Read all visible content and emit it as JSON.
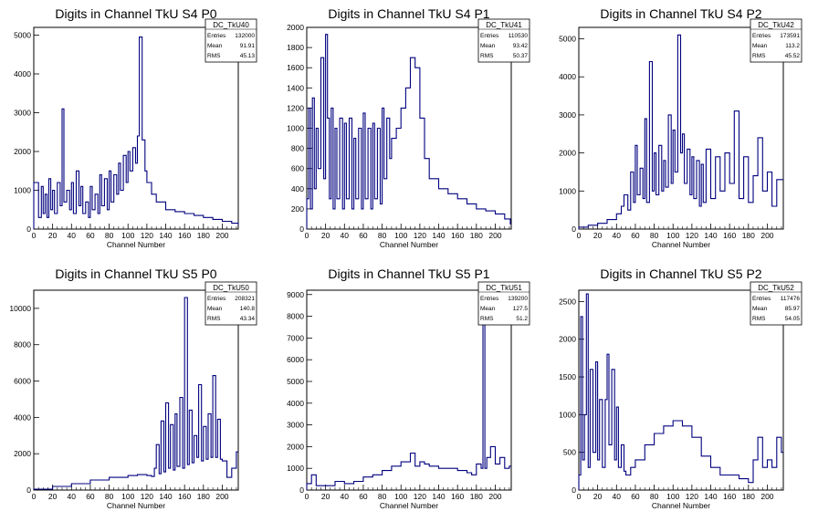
{
  "style": {
    "line_color": "#00007f",
    "frame_color": "#000000",
    "background": "#ffffff"
  },
  "chart_data": [
    {
      "type": "line",
      "title": "Digits in Channel TkU S4 P0",
      "xlabel": "Channel Number",
      "ylabel": "",
      "xlim": [
        0,
        217
      ],
      "ylim": [
        0,
        5200
      ],
      "xticks": [
        0,
        20,
        40,
        60,
        80,
        100,
        120,
        140,
        160,
        180,
        200
      ],
      "yticks": [
        0,
        1000,
        2000,
        3000,
        4000,
        5000
      ],
      "stats": {
        "name": "DC_TkU40",
        "entries": "132000",
        "mean": "91.91",
        "rms": "45.13"
      },
      "x": [
        0,
        5,
        8,
        10,
        12,
        14,
        16,
        18,
        20,
        22,
        25,
        28,
        30,
        32,
        35,
        38,
        40,
        42,
        45,
        48,
        50,
        52,
        55,
        58,
        60,
        62,
        65,
        68,
        70,
        72,
        75,
        78,
        80,
        82,
        85,
        88,
        90,
        92,
        95,
        98,
        100,
        102,
        105,
        108,
        110,
        112,
        115,
        118,
        120,
        125,
        130,
        140,
        150,
        160,
        170,
        180,
        190,
        200,
        210,
        217
      ],
      "values": [
        1200,
        300,
        1100,
        400,
        900,
        300,
        1300,
        500,
        1000,
        400,
        1200,
        600,
        3100,
        700,
        1000,
        500,
        1200,
        400,
        1500,
        600,
        1100,
        400,
        700,
        300,
        1100,
        500,
        900,
        400,
        1400,
        600,
        1300,
        500,
        1500,
        700,
        1400,
        900,
        1700,
        1000,
        1900,
        1200,
        2000,
        1500,
        2100,
        1700,
        2400,
        4950,
        2300,
        1500,
        1200,
        900,
        700,
        500,
        450,
        400,
        350,
        300,
        250,
        200,
        150,
        100
      ]
    },
    {
      "type": "line",
      "title": "Digits in Channel TkU S4 P1",
      "xlabel": "Channel Number",
      "ylabel": "",
      "xlim": [
        0,
        217
      ],
      "ylim": [
        0,
        2000
      ],
      "xticks": [
        0,
        20,
        40,
        60,
        80,
        100,
        120,
        140,
        160,
        180,
        200
      ],
      "yticks": [
        0,
        200,
        400,
        600,
        800,
        1000,
        1200,
        1400,
        1600,
        1800,
        2000
      ],
      "stats": {
        "name": "DC_TkU41",
        "entries": "110530",
        "mean": "93.42",
        "rms": "50.37"
      },
      "x": [
        0,
        2,
        4,
        6,
        8,
        10,
        12,
        15,
        18,
        20,
        22,
        24,
        26,
        28,
        30,
        32,
        35,
        38,
        40,
        42,
        45,
        48,
        50,
        52,
        55,
        58,
        60,
        62,
        65,
        68,
        70,
        72,
        75,
        78,
        80,
        82,
        85,
        88,
        90,
        95,
        100,
        105,
        110,
        115,
        120,
        125,
        130,
        140,
        150,
        160,
        170,
        180,
        190,
        200,
        210,
        216
      ],
      "values": [
        300,
        1200,
        200,
        1300,
        400,
        1000,
        600,
        1700,
        500,
        1930,
        1100,
        300,
        1200,
        200,
        1000,
        300,
        1100,
        200,
        1050,
        300,
        1100,
        200,
        900,
        300,
        1000,
        200,
        1150,
        300,
        1000,
        200,
        1050,
        300,
        1000,
        250,
        1200,
        500,
        1100,
        700,
        900,
        1000,
        1200,
        1400,
        1700,
        1600,
        1100,
        700,
        500,
        400,
        350,
        300,
        250,
        200,
        180,
        150,
        100,
        50
      ]
    },
    {
      "type": "line",
      "title": "Digits in Channel TkU S4 P2",
      "xlabel": "Channel Number",
      "ylabel": "",
      "xlim": [
        0,
        217
      ],
      "ylim": [
        0,
        5300
      ],
      "xticks": [
        0,
        20,
        40,
        60,
        80,
        100,
        120,
        140,
        160,
        180,
        200
      ],
      "yticks": [
        0,
        1000,
        2000,
        3000,
        4000,
        5000
      ],
      "stats": {
        "name": "DC_TkU42",
        "entries": "173591",
        "mean": "113.2",
        "rms": "45.52"
      },
      "x": [
        0,
        10,
        20,
        30,
        40,
        45,
        48,
        52,
        55,
        58,
        60,
        62,
        65,
        68,
        70,
        72,
        75,
        78,
        80,
        82,
        85,
        88,
        90,
        92,
        95,
        98,
        100,
        102,
        105,
        108,
        110,
        112,
        115,
        118,
        120,
        122,
        125,
        128,
        130,
        132,
        135,
        140,
        145,
        150,
        155,
        160,
        165,
        170,
        175,
        180,
        185,
        190,
        195,
        200,
        205,
        210
      ],
      "values": [
        50,
        100,
        150,
        250,
        400,
        600,
        900,
        500,
        1500,
        700,
        2200,
        900,
        1600,
        800,
        2900,
        700,
        4400,
        1000,
        2000,
        900,
        2200,
        1000,
        1800,
        1100,
        3000,
        1200,
        2600,
        1500,
        5100,
        2000,
        2500,
        1200,
        2100,
        900,
        1900,
        800,
        1800,
        600,
        1700,
        700,
        2100,
        800,
        1900,
        1000,
        2000,
        1200,
        3100,
        800,
        1900,
        700,
        1400,
        2400,
        1000,
        1500,
        600,
        1300
      ]
    },
    {
      "type": "line",
      "title": "Digits in Channel TkU S5 P0",
      "xlabel": "Channel Number",
      "ylabel": "",
      "xlim": [
        0,
        217
      ],
      "ylim": [
        0,
        11000
      ],
      "xticks": [
        0,
        20,
        40,
        60,
        80,
        100,
        120,
        140,
        160,
        180,
        200
      ],
      "yticks": [
        0,
        2000,
        4000,
        6000,
        8000,
        10000
      ],
      "stats": {
        "name": "DC_TkU50",
        "entries": "208321",
        "mean": "140.8",
        "rms": "43.34"
      },
      "x": [
        0,
        20,
        40,
        60,
        80,
        100,
        110,
        120,
        125,
        128,
        130,
        133,
        135,
        138,
        140,
        143,
        145,
        148,
        150,
        152,
        155,
        158,
        160,
        163,
        165,
        168,
        170,
        173,
        175,
        178,
        180,
        183,
        185,
        188,
        190,
        193,
        195,
        198,
        200,
        205,
        210,
        215
      ],
      "values": [
        50,
        200,
        350,
        550,
        700,
        800,
        850,
        800,
        750,
        1200,
        2500,
        900,
        3800,
        1000,
        4800,
        1200,
        3600,
        1100,
        4200,
        1300,
        5100,
        1200,
        10600,
        1400,
        4400,
        1500,
        3000,
        1800,
        5800,
        1600,
        3500,
        1700,
        4200,
        1800,
        6300,
        1800,
        3900,
        1700,
        1600,
        700,
        1200,
        2100
      ]
    },
    {
      "type": "line",
      "title": "Digits in Channel TkU S5 P1",
      "xlabel": "Channel Number",
      "ylabel": "",
      "xlim": [
        0,
        217
      ],
      "ylim": [
        0,
        9200
      ],
      "xticks": [
        0,
        20,
        40,
        60,
        80,
        100,
        120,
        140,
        160,
        180,
        200
      ],
      "yticks": [
        0,
        1000,
        2000,
        3000,
        4000,
        5000,
        6000,
        7000,
        8000,
        9000
      ],
      "stats": {
        "name": "DC_TkU51",
        "entries": "139200",
        "mean": "127.5",
        "rms": "51.2"
      },
      "x": [
        0,
        5,
        10,
        20,
        30,
        40,
        50,
        60,
        70,
        80,
        90,
        100,
        110,
        115,
        120,
        125,
        130,
        140,
        150,
        160,
        170,
        175,
        180,
        185,
        187,
        189,
        191,
        195,
        200,
        205,
        210,
        215
      ],
      "values": [
        300,
        700,
        200,
        200,
        400,
        300,
        400,
        600,
        700,
        900,
        1100,
        1300,
        1700,
        1100,
        1300,
        1200,
        1100,
        1000,
        1000,
        900,
        800,
        700,
        1200,
        1000,
        7900,
        1000,
        1500,
        2000,
        1200,
        1500,
        1000,
        1100
      ]
    },
    {
      "type": "line",
      "title": "Digits in Channel TkU S5 P2",
      "xlabel": "Channel Number",
      "ylabel": "",
      "xlim": [
        0,
        217
      ],
      "ylim": [
        0,
        2650
      ],
      "xticks": [
        0,
        20,
        40,
        60,
        80,
        100,
        120,
        140,
        160,
        180,
        200
      ],
      "yticks": [
        0,
        500,
        1000,
        1500,
        2000,
        2500
      ],
      "stats": {
        "name": "DC_TkU52",
        "entries": "117476",
        "mean": "85.97",
        "rms": "54.05"
      },
      "x": [
        0,
        2,
        4,
        6,
        8,
        10,
        12,
        15,
        18,
        20,
        22,
        25,
        28,
        30,
        32,
        35,
        38,
        40,
        42,
        45,
        48,
        50,
        55,
        60,
        70,
        80,
        90,
        100,
        110,
        120,
        130,
        140,
        150,
        160,
        170,
        180,
        185,
        190,
        195,
        200,
        205,
        210,
        215
      ],
      "values": [
        200,
        2300,
        400,
        1000,
        2600,
        300,
        1600,
        500,
        1700,
        400,
        1200,
        300,
        1200,
        1800,
        600,
        1600,
        400,
        1100,
        300,
        600,
        250,
        200,
        300,
        400,
        600,
        750,
        850,
        920,
        850,
        700,
        450,
        300,
        200,
        200,
        150,
        100,
        400,
        700,
        300,
        400,
        300,
        700,
        500
      ]
    }
  ]
}
